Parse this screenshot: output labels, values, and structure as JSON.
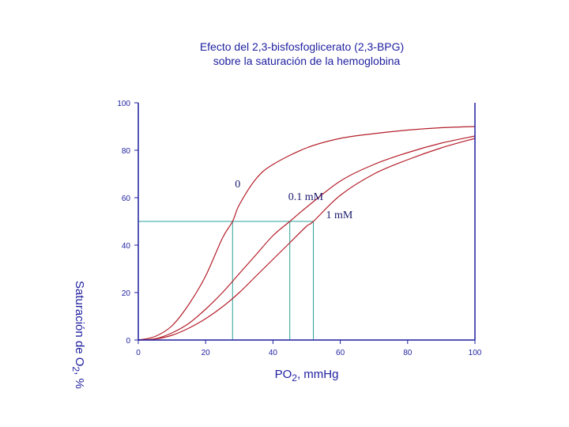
{
  "chart_data": {
    "type": "line",
    "title": [
      "Efecto del 2,3-bisfosfoglicerato (2,3-BPG)",
      "sobre la saturación de la hemoglobina"
    ],
    "xlabel": {
      "main": "PO",
      "sub": "2",
      "rest": ", mmHg"
    },
    "ylabel": {
      "main": "Saturación de O",
      "sub": "2",
      "rest": ", %"
    },
    "xlim": [
      0,
      100
    ],
    "ylim": [
      0,
      100
    ],
    "xticks": [
      0,
      20,
      40,
      60,
      80,
      100
    ],
    "yticks": [
      0,
      20,
      40,
      60,
      80,
      100
    ],
    "grid": false,
    "series": [
      {
        "name": "0",
        "p50": 28,
        "x": [
          0,
          5,
          10,
          15,
          20,
          25,
          28,
          30,
          35,
          40,
          50,
          60,
          70,
          80,
          90,
          100
        ],
        "y": [
          0,
          1.5,
          6,
          15,
          27,
          43,
          50,
          57,
          68,
          74,
          81,
          85,
          87,
          88.5,
          89.5,
          90
        ]
      },
      {
        "name": "0.1 mM",
        "p50": 45,
        "x": [
          0,
          5,
          10,
          15,
          20,
          25,
          30,
          35,
          40,
          45,
          50,
          60,
          70,
          80,
          90,
          100
        ],
        "y": [
          0,
          0.5,
          3,
          7,
          13,
          20,
          28,
          36,
          44,
          50,
          56,
          67,
          74,
          79,
          83,
          86
        ]
      },
      {
        "name": "1 mM",
        "p50": 52,
        "x": [
          0,
          5,
          10,
          15,
          20,
          25,
          30,
          35,
          40,
          45,
          50,
          52,
          60,
          70,
          80,
          90,
          100
        ],
        "y": [
          0,
          0.4,
          2,
          5,
          9,
          14,
          20,
          27,
          34,
          41,
          48,
          50,
          61,
          70,
          76,
          81,
          85
        ]
      }
    ],
    "reference_lines": {
      "y": 50,
      "x": [
        28,
        45,
        52
      ]
    },
    "colors": {
      "axis": "#1f1fa0",
      "curve": "#b41e2a",
      "reference": "#2aa198",
      "text": "#1f1fa0",
      "label": "#1a1a6e"
    }
  }
}
